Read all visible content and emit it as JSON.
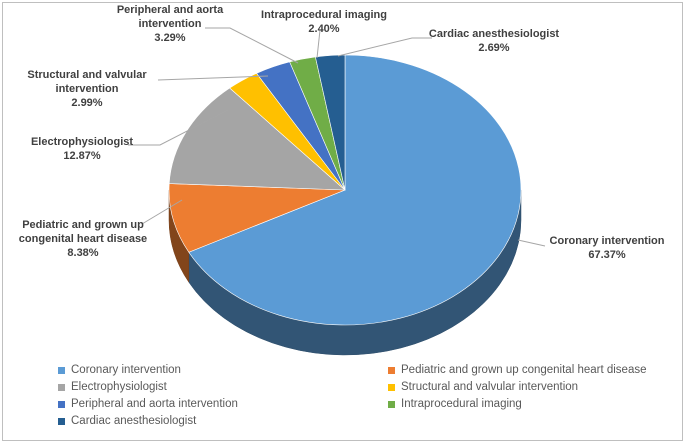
{
  "chart_data": {
    "type": "pie",
    "title": "",
    "slices": [
      {
        "label": "Coronary intervention",
        "percent_label": "67.37%",
        "value": 67.37,
        "color": "#5B9BD5"
      },
      {
        "label": "Pediatric and grown up congenital heart disease",
        "percent_label": "8.38%",
        "value": 8.38,
        "color": "#ED7D31"
      },
      {
        "label": "Electrophysiologist",
        "percent_label": "12.87%",
        "value": 12.87,
        "color": "#A5A5A5"
      },
      {
        "label": "Structural and valvular intervention",
        "percent_label": "2.99%",
        "value": 2.99,
        "color": "#FFC000"
      },
      {
        "label": "Peripheral and aorta intervention",
        "percent_label": "3.29%",
        "value": 3.29,
        "color": "#4472C4"
      },
      {
        "label": "Intraprocedural imaging",
        "percent_label": "2.40%",
        "value": 2.4,
        "color": "#70AD47"
      },
      {
        "label": "Cardiac anesthesiologist",
        "percent_label": "2.69%",
        "value": 2.69,
        "color": "#255E91"
      }
    ],
    "legend_position": "bottom",
    "style": "3d"
  }
}
